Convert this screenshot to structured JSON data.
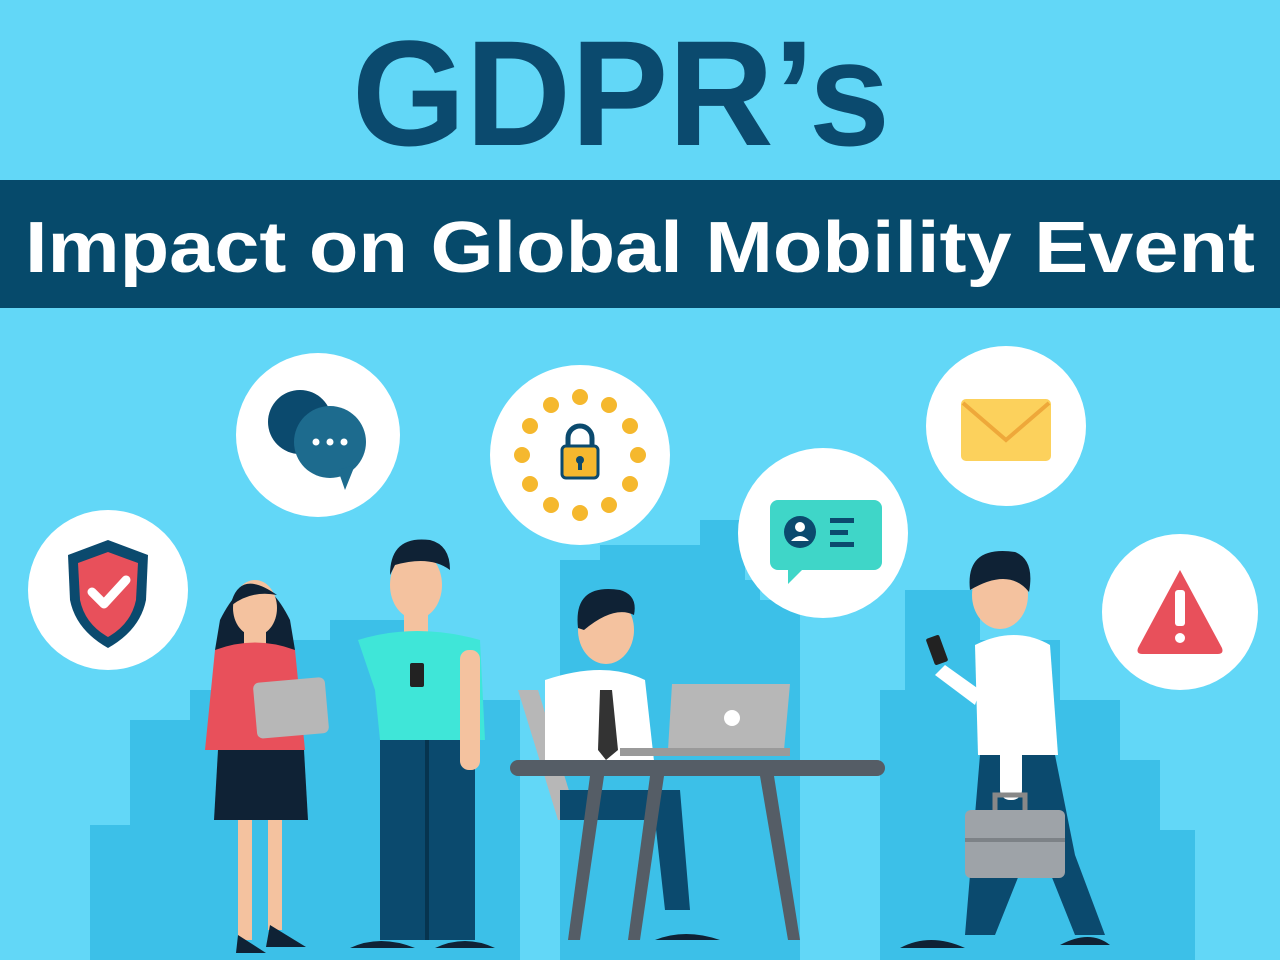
{
  "title": "GDPR’s",
  "subtitle": "Impact on Global Mobility Event"
}
